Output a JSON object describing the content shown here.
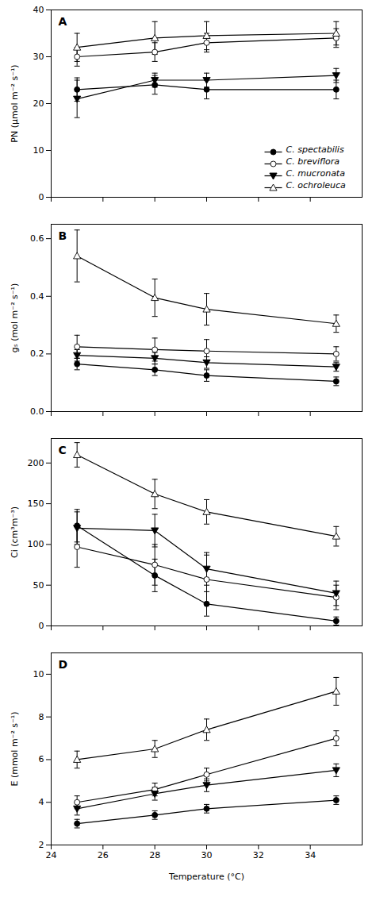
{
  "chart_data": [
    {
      "type": "line",
      "annotations": [
        "A"
      ],
      "ylabel": "PN (μmol m⁻² s⁻¹)",
      "x": [
        25,
        28,
        30,
        35
      ],
      "xlim": [
        24,
        36
      ],
      "xticks": [
        24,
        26,
        28,
        30,
        32,
        34
      ],
      "ylim": [
        0,
        40
      ],
      "yticks": [
        0,
        10,
        20,
        30,
        40
      ],
      "tick_labels": "y",
      "legend": "lower right",
      "series": [
        {
          "name": "C. spectabilis",
          "color": "black",
          "marker": "circle",
          "line_style": "solid",
          "values": [
            23,
            24,
            23,
            23
          ],
          "yerr": [
            2.5,
            2,
            2,
            2
          ]
        },
        {
          "name": "C. breviflora",
          "color": "black",
          "marker": "open_circle",
          "line_style": "solid",
          "values": [
            30,
            31,
            33,
            34
          ],
          "yerr": [
            2,
            2,
            2,
            2
          ]
        },
        {
          "name": "C. mucronata",
          "color": "black",
          "marker": "triangle_down",
          "line_style": "solid",
          "values": [
            21,
            25,
            25,
            26
          ],
          "yerr": [
            4,
            1.5,
            1.5,
            1.5
          ]
        },
        {
          "name": "C. ochroleuca",
          "color": "black",
          "marker": "open_triangle_up",
          "line_style": "solid",
          "values": [
            32,
            34,
            34.5,
            35
          ],
          "yerr": [
            3,
            3.5,
            3,
            2.5
          ]
        }
      ]
    },
    {
      "type": "line",
      "annotations": [
        "B"
      ],
      "ylabel": "gₛ (mol m⁻² s⁻¹)",
      "x": [
        25,
        28,
        30,
        35
      ],
      "xlim": [
        24,
        36
      ],
      "xticks": [
        24,
        26,
        28,
        30,
        32,
        34
      ],
      "ylim": [
        0,
        0.65
      ],
      "yticks": [
        {
          "value": 0,
          "label": "0.0"
        },
        0.2,
        0.4,
        0.6
      ],
      "tick_labels": "y",
      "series": [
        {
          "name": "C. spectabilis",
          "color": "black",
          "marker": "circle",
          "line_style": "solid",
          "values": [
            0.165,
            0.145,
            0.125,
            0.105
          ],
          "yerr": [
            0.02,
            0.02,
            0.02,
            0.015
          ]
        },
        {
          "name": "C. breviflora",
          "color": "black",
          "marker": "open_circle",
          "line_style": "solid",
          "values": [
            0.225,
            0.215,
            0.21,
            0.2
          ],
          "yerr": [
            0.04,
            0.04,
            0.04,
            0.025
          ]
        },
        {
          "name": "C. mucronata",
          "color": "black",
          "marker": "triangle_down",
          "line_style": "solid",
          "values": [
            0.195,
            0.185,
            0.17,
            0.155
          ],
          "yerr": [
            0.02,
            0.02,
            0.02,
            0.015
          ]
        },
        {
          "name": "C. ochroleuca",
          "color": "black",
          "marker": "open_triangle_up",
          "line_style": "solid",
          "values": [
            0.54,
            0.395,
            0.355,
            0.305
          ],
          "yerr": [
            0.09,
            0.065,
            0.055,
            0.03
          ]
        }
      ]
    },
    {
      "type": "line",
      "annotations": [
        "C"
      ],
      "ylabel": "Ci (cm³m⁻³)",
      "x": [
        25,
        28,
        30,
        35
      ],
      "xlim": [
        24,
        36
      ],
      "xticks": [
        24,
        26,
        28,
        30,
        32,
        34
      ],
      "ylim": [
        0,
        230
      ],
      "yticks": [
        0,
        50,
        100,
        150,
        200
      ],
      "tick_labels": "y",
      "series": [
        {
          "name": "C. spectabilis",
          "color": "black",
          "marker": "circle",
          "line_style": "solid",
          "values": [
            123,
            62,
            27,
            6
          ],
          "yerr": [
            20,
            20,
            15,
            5
          ]
        },
        {
          "name": "C. breviflora",
          "color": "black",
          "marker": "open_circle",
          "line_style": "solid",
          "values": [
            97,
            75,
            57,
            35
          ],
          "yerr": [
            25,
            25,
            30,
            15
          ]
        },
        {
          "name": "C. mucronata",
          "color": "black",
          "marker": "triangle_down",
          "line_style": "solid",
          "values": [
            120,
            117,
            70,
            40
          ],
          "yerr": [
            20,
            20,
            20,
            15
          ]
        },
        {
          "name": "C. ochroleuca",
          "color": "black",
          "marker": "open_triangle_up",
          "line_style": "solid",
          "values": [
            210,
            162,
            140,
            110
          ],
          "yerr": [
            15,
            18,
            15,
            12
          ]
        }
      ]
    },
    {
      "type": "line",
      "annotations": [
        "D"
      ],
      "ylabel": "E (mmol m⁻² s⁻¹)",
      "xlabel": "Temperature (°C)",
      "x": [
        25,
        28,
        30,
        35
      ],
      "xlim": [
        24,
        36
      ],
      "xticks": [
        24,
        26,
        28,
        30,
        32,
        34
      ],
      "ylim": [
        2,
        11
      ],
      "yticks": [
        2,
        4,
        6,
        8,
        10
      ],
      "series": [
        {
          "name": "C. spectabilis",
          "color": "black",
          "marker": "circle",
          "line_style": "solid",
          "values": [
            3.0,
            3.4,
            3.7,
            4.1
          ],
          "yerr": [
            0.2,
            0.2,
            0.2,
            0.2
          ]
        },
        {
          "name": "C. breviflora",
          "color": "black",
          "marker": "open_circle",
          "line_style": "solid",
          "values": [
            4.0,
            4.6,
            5.3,
            7.0
          ],
          "yerr": [
            0.3,
            0.3,
            0.3,
            0.35
          ]
        },
        {
          "name": "C. mucronata",
          "color": "black",
          "marker": "triangle_down",
          "line_style": "solid",
          "values": [
            3.7,
            4.4,
            4.8,
            5.5
          ],
          "yerr": [
            0.3,
            0.3,
            0.3,
            0.3
          ]
        },
        {
          "name": "C. ochroleuca",
          "color": "black",
          "marker": "open_triangle_up",
          "line_style": "solid",
          "values": [
            6.0,
            6.5,
            7.4,
            9.2
          ],
          "yerr": [
            0.4,
            0.4,
            0.5,
            0.65
          ]
        }
      ]
    }
  ]
}
